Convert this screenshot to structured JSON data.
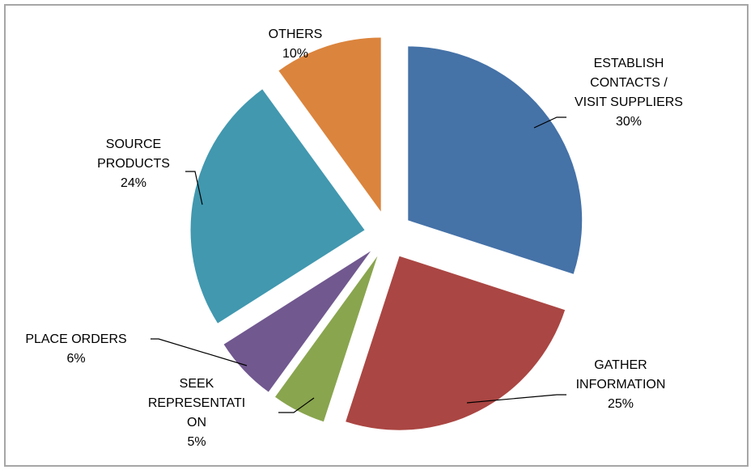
{
  "chart_data": {
    "type": "pie",
    "exploded": true,
    "legend": "none",
    "slices": [
      {
        "label": [
          "ESTABLISH",
          "CONTACTS /",
          "VISIT SUPPLIERS"
        ],
        "value": 30,
        "value_label": "30%",
        "color": "#4572a7"
      },
      {
        "label": [
          "GATHER",
          "INFORMATION"
        ],
        "value": 25,
        "value_label": "25%",
        "color": "#aa4643"
      },
      {
        "label": [
          "SEEK",
          "REPRESENTATI",
          "ON"
        ],
        "value": 5,
        "value_label": "5%",
        "color": "#89a54e"
      },
      {
        "label": [
          "PLACE ORDERS"
        ],
        "value": 6,
        "value_label": "6%",
        "color": "#71588f"
      },
      {
        "label": [
          "SOURCE",
          "PRODUCTS"
        ],
        "value": 24,
        "value_label": "24%",
        "color": "#4198af"
      },
      {
        "label": [
          "OTHERS"
        ],
        "value": 10,
        "value_label": "10%",
        "color": "#db843d"
      }
    ]
  }
}
